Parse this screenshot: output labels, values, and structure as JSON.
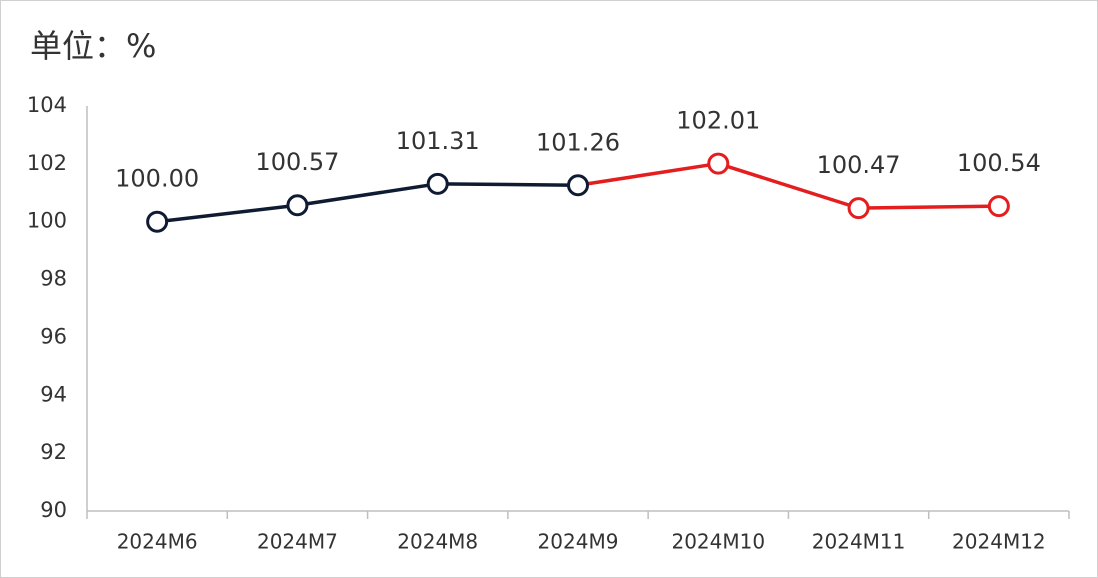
{
  "chart_data": {
    "type": "line",
    "unit_label": "单位：%",
    "categories": [
      "2024M6",
      "2024M7",
      "2024M8",
      "2024M9",
      "2024M10",
      "2024M11",
      "2024M12"
    ],
    "values": [
      100.0,
      100.57,
      101.31,
      101.26,
      102.01,
      100.47,
      100.54
    ],
    "value_labels": [
      "100.00",
      "100.57",
      "101.31",
      "101.26",
      "102.01",
      "100.47",
      "100.54"
    ],
    "point_colors": [
      "#0f1a33",
      "#0f1a33",
      "#0f1a33",
      "#0f1a33",
      "#e41e1e",
      "#e41e1e",
      "#e41e1e"
    ],
    "ylim": [
      90,
      104
    ],
    "yticks": [
      90,
      92,
      94,
      96,
      98,
      100,
      102,
      104
    ],
    "grid": false
  }
}
